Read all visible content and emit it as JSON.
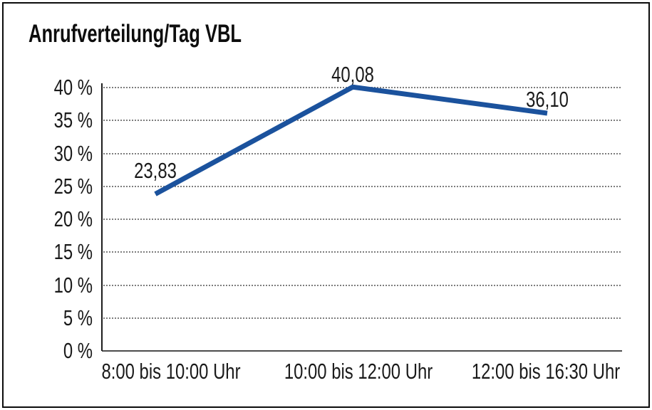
{
  "window": {
    "background": "#ffffff",
    "border_color": "#0c0c0c"
  },
  "chart_data": {
    "type": "line",
    "title": "Anrufverteilung/Tag VBL",
    "categories": [
      "8:00 bis 10:00 Uhr",
      "10:00 bis 12:00 Uhr",
      "12:00 bis 16:30 Uhr"
    ],
    "series": [
      {
        "color": "#1b529d",
        "values": [
          23.83,
          40.08,
          36.1
        ]
      }
    ],
    "data_labels": [
      "23,83",
      "40,08",
      "36,10"
    ],
    "xlabel": "",
    "ylabel": "",
    "ylim": [
      0,
      40
    ],
    "ytick_step": 5,
    "ytick_labels": [
      "0 %",
      "5 %",
      "10 %",
      "15 %",
      "20 %",
      "25 %",
      "30 %",
      "35 %",
      "40 %"
    ],
    "grid": "horizontal-dotted",
    "legend": "none"
  }
}
